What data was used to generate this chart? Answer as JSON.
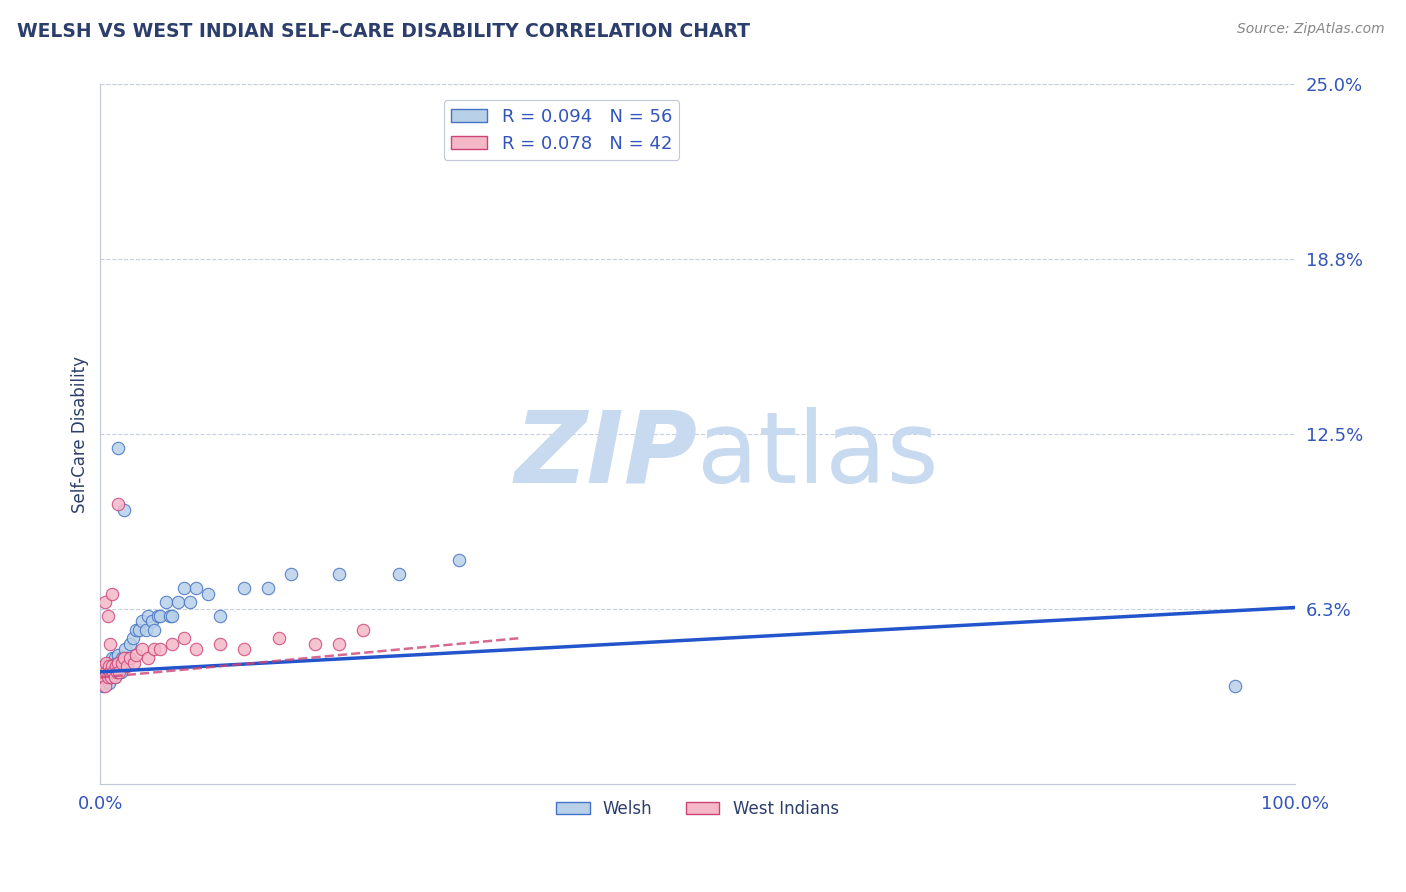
{
  "title": "WELSH VS WEST INDIAN SELF-CARE DISABILITY CORRELATION CHART",
  "source": "Source: ZipAtlas.com",
  "ylabel": "Self-Care Disability",
  "xlim": [
    0,
    1.0
  ],
  "ylim": [
    0,
    0.25
  ],
  "yticks": [
    0.0625,
    0.125,
    0.1875,
    0.25
  ],
  "ytick_labels": [
    "6.3%",
    "12.5%",
    "18.8%",
    "25.0%"
  ],
  "xticks": [
    0.0,
    1.0
  ],
  "xtick_labels": [
    "0.0%",
    "100.0%"
  ],
  "welsh_R": 0.094,
  "welsh_N": 56,
  "west_indian_R": 0.078,
  "west_indian_N": 42,
  "welsh_color": "#b8d0e8",
  "welsh_edge_color": "#4472c4",
  "welsh_line_color": "#2255cc",
  "west_indian_color": "#f4b8c8",
  "west_indian_edge_color": "#cc4477",
  "west_indian_line_color": "#cc4477",
  "title_color": "#2c3e6b",
  "tick_label_color": "#3355bb",
  "watermark_zip": "ZIP",
  "watermark_atlas": "atlas",
  "watermark_color": "#c8daf0",
  "background_color": "#ffffff",
  "grid_color": "#c8d0e0",
  "welsh_x": [
    0.002,
    0.003,
    0.004,
    0.005,
    0.005,
    0.006,
    0.007,
    0.007,
    0.008,
    0.009,
    0.01,
    0.01,
    0.011,
    0.012,
    0.012,
    0.013,
    0.013,
    0.014,
    0.015,
    0.015,
    0.016,
    0.017,
    0.018,
    0.019,
    0.02,
    0.021,
    0.022,
    0.025,
    0.027,
    0.03,
    0.032,
    0.035,
    0.038,
    0.04,
    0.043,
    0.045,
    0.048,
    0.05,
    0.055,
    0.058,
    0.06,
    0.065,
    0.07,
    0.075,
    0.08,
    0.09,
    0.1,
    0.12,
    0.14,
    0.16,
    0.2,
    0.25,
    0.3,
    0.95,
    0.02,
    0.015
  ],
  "welsh_y": [
    0.035,
    0.038,
    0.04,
    0.038,
    0.042,
    0.038,
    0.036,
    0.042,
    0.04,
    0.038,
    0.042,
    0.045,
    0.04,
    0.038,
    0.045,
    0.04,
    0.043,
    0.04,
    0.042,
    0.046,
    0.043,
    0.04,
    0.045,
    0.042,
    0.045,
    0.048,
    0.045,
    0.05,
    0.052,
    0.055,
    0.055,
    0.058,
    0.055,
    0.06,
    0.058,
    0.055,
    0.06,
    0.06,
    0.065,
    0.06,
    0.06,
    0.065,
    0.07,
    0.065,
    0.07,
    0.068,
    0.06,
    0.07,
    0.07,
    0.075,
    0.075,
    0.075,
    0.08,
    0.035,
    0.098,
    0.12
  ],
  "west_indian_x": [
    0.001,
    0.002,
    0.003,
    0.003,
    0.004,
    0.005,
    0.005,
    0.006,
    0.007,
    0.008,
    0.009,
    0.01,
    0.011,
    0.012,
    0.013,
    0.014,
    0.015,
    0.016,
    0.018,
    0.02,
    0.022,
    0.025,
    0.028,
    0.03,
    0.035,
    0.04,
    0.045,
    0.05,
    0.06,
    0.07,
    0.08,
    0.1,
    0.12,
    0.15,
    0.18,
    0.2,
    0.22,
    0.004,
    0.006,
    0.008,
    0.01,
    0.015
  ],
  "west_indian_y": [
    0.038,
    0.04,
    0.038,
    0.042,
    0.035,
    0.04,
    0.043,
    0.038,
    0.042,
    0.04,
    0.038,
    0.042,
    0.04,
    0.038,
    0.042,
    0.04,
    0.043,
    0.04,
    0.043,
    0.045,
    0.042,
    0.045,
    0.043,
    0.046,
    0.048,
    0.045,
    0.048,
    0.048,
    0.05,
    0.052,
    0.048,
    0.05,
    0.048,
    0.052,
    0.05,
    0.05,
    0.055,
    0.065,
    0.06,
    0.05,
    0.068,
    0.1
  ],
  "welsh_trend_x": [
    0.0,
    1.0
  ],
  "welsh_trend_y": [
    0.04,
    0.063
  ],
  "west_trend_x": [
    0.0,
    0.35
  ],
  "west_trend_y": [
    0.038,
    0.052
  ]
}
